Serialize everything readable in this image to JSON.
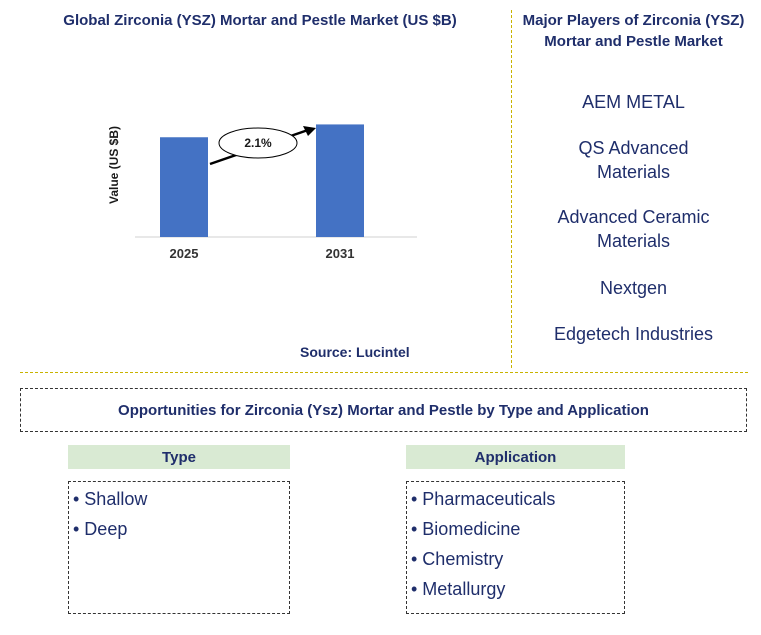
{
  "chart_data": {
    "type": "bar",
    "title": "Global Zirconia (YSZ) Mortar and Pestle Market (US $B)",
    "ylabel": "Value (US $B)",
    "xlabel": "",
    "categories": [
      "2025",
      "2031"
    ],
    "values": [
      0.7,
      0.79
    ],
    "ylim": [
      0,
      0.8
    ],
    "bar_color": "#4472c4",
    "annotation": "2.1%",
    "grid": false
  },
  "source": "Source: Lucintel",
  "players": {
    "title": "Major Players of Zirconia (YSZ) Mortar and Pestle Market",
    "items": [
      "AEM METAL",
      "QS Advanced Materials",
      "Advanced Ceramic Materials",
      "Nextgen",
      "Edgetech Industries"
    ]
  },
  "opportunities": {
    "title": "Opportunities for Zirconia (Ysz) Mortar and Pestle by Type and Application",
    "type_header": "Type",
    "type_items": [
      "• Shallow",
      "• Deep"
    ],
    "application_header": "Application",
    "application_items": [
      "• Pharmaceuticals",
      "• Biomedicine",
      "• Chemistry",
      "• Metallurgy"
    ]
  },
  "colors": {
    "title": "#1f2e6b",
    "accent_green": "#d9ead3",
    "divider": "#c8b400"
  }
}
